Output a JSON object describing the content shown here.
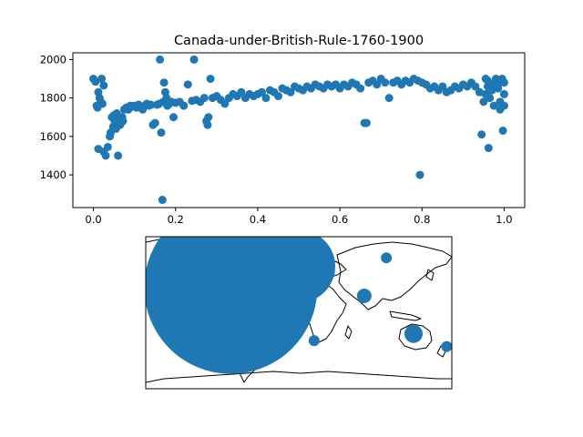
{
  "chart_data": [
    {
      "type": "scatter",
      "title": "Canada-under-British-Rule-1760-1900",
      "xlabel": "",
      "ylabel": "",
      "xlim": [
        -0.05,
        1.05
      ],
      "ylim": [
        1230,
        2035
      ],
      "xticks": [
        "0.0",
        "0.2",
        "0.4",
        "0.6",
        "0.8",
        "1.0"
      ],
      "yticks": [
        "1400",
        "1600",
        "1800",
        "2000"
      ],
      "marker_color": "#1f77b4",
      "points": [
        [
          0.0,
          1900
        ],
        [
          0.005,
          1885
        ],
        [
          0.008,
          1760
        ],
        [
          0.01,
          1750
        ],
        [
          0.012,
          1830
        ],
        [
          0.015,
          1800
        ],
        [
          0.018,
          1780
        ],
        [
          0.02,
          1900
        ],
        [
          0.022,
          1770
        ],
        [
          0.025,
          1865
        ],
        [
          0.012,
          1535
        ],
        [
          0.025,
          1520
        ],
        [
          0.03,
          1500
        ],
        [
          0.035,
          1545
        ],
        [
          0.04,
          1600
        ],
        [
          0.042,
          1620
        ],
        [
          0.045,
          1700
        ],
        [
          0.048,
          1650
        ],
        [
          0.05,
          1710
        ],
        [
          0.052,
          1680
        ],
        [
          0.055,
          1640
        ],
        [
          0.057,
          1720
        ],
        [
          0.06,
          1500
        ],
        [
          0.062,
          1700
        ],
        [
          0.065,
          1660
        ],
        [
          0.068,
          1690
        ],
        [
          0.07,
          1700
        ],
        [
          0.072,
          1680
        ],
        [
          0.075,
          1740
        ],
        [
          0.08,
          1750
        ],
        [
          0.085,
          1740
        ],
        [
          0.09,
          1760
        ],
        [
          0.095,
          1755
        ],
        [
          0.1,
          1760
        ],
        [
          0.105,
          1750
        ],
        [
          0.11,
          1765
        ],
        [
          0.115,
          1750
        ],
        [
          0.12,
          1740
        ],
        [
          0.125,
          1760
        ],
        [
          0.13,
          1770
        ],
        [
          0.135,
          1760
        ],
        [
          0.14,
          1765
        ],
        [
          0.145,
          1660
        ],
        [
          0.15,
          1670
        ],
        [
          0.155,
          1765
        ],
        [
          0.16,
          1770
        ],
        [
          0.162,
          2000
        ],
        [
          0.165,
          1620
        ],
        [
          0.168,
          1270
        ],
        [
          0.17,
          1780
        ],
        [
          0.172,
          1880
        ],
        [
          0.175,
          1830
        ],
        [
          0.178,
          1800
        ],
        [
          0.18,
          1760
        ],
        [
          0.185,
          1770
        ],
        [
          0.19,
          1780
        ],
        [
          0.195,
          1700
        ],
        [
          0.2,
          1775
        ],
        [
          0.21,
          1780
        ],
        [
          0.22,
          1760
        ],
        [
          0.23,
          1870
        ],
        [
          0.24,
          1785
        ],
        [
          0.245,
          2000
        ],
        [
          0.25,
          1790
        ],
        [
          0.26,
          1780
        ],
        [
          0.27,
          1800
        ],
        [
          0.275,
          1680
        ],
        [
          0.278,
          1660
        ],
        [
          0.28,
          1700
        ],
        [
          0.285,
          1900
        ],
        [
          0.29,
          1800
        ],
        [
          0.3,
          1810
        ],
        [
          0.31,
          1790
        ],
        [
          0.32,
          1770
        ],
        [
          0.33,
          1800
        ],
        [
          0.34,
          1820
        ],
        [
          0.35,
          1810
        ],
        [
          0.36,
          1830
        ],
        [
          0.37,
          1800
        ],
        [
          0.38,
          1820
        ],
        [
          0.39,
          1810
        ],
        [
          0.4,
          1820
        ],
        [
          0.41,
          1830
        ],
        [
          0.42,
          1800
        ],
        [
          0.43,
          1840
        ],
        [
          0.44,
          1830
        ],
        [
          0.45,
          1810
        ],
        [
          0.46,
          1850
        ],
        [
          0.47,
          1840
        ],
        [
          0.48,
          1830
        ],
        [
          0.49,
          1860
        ],
        [
          0.5,
          1850
        ],
        [
          0.51,
          1840
        ],
        [
          0.52,
          1860
        ],
        [
          0.53,
          1850
        ],
        [
          0.54,
          1870
        ],
        [
          0.55,
          1860
        ],
        [
          0.56,
          1850
        ],
        [
          0.57,
          1870
        ],
        [
          0.58,
          1860
        ],
        [
          0.59,
          1870
        ],
        [
          0.6,
          1850
        ],
        [
          0.61,
          1870
        ],
        [
          0.62,
          1860
        ],
        [
          0.63,
          1880
        ],
        [
          0.64,
          1870
        ],
        [
          0.65,
          1850
        ],
        [
          0.66,
          1670
        ],
        [
          0.665,
          1670
        ],
        [
          0.67,
          1880
        ],
        [
          0.68,
          1890
        ],
        [
          0.69,
          1870
        ],
        [
          0.7,
          1900
        ],
        [
          0.71,
          1880
        ],
        [
          0.72,
          1800
        ],
        [
          0.73,
          1880
        ],
        [
          0.74,
          1890
        ],
        [
          0.75,
          1870
        ],
        [
          0.76,
          1890
        ],
        [
          0.77,
          1880
        ],
        [
          0.78,
          1900
        ],
        [
          0.79,
          1890
        ],
        [
          0.795,
          1400
        ],
        [
          0.8,
          1880
        ],
        [
          0.81,
          1870
        ],
        [
          0.82,
          1850
        ],
        [
          0.83,
          1860
        ],
        [
          0.84,
          1840
        ],
        [
          0.85,
          1860
        ],
        [
          0.86,
          1830
        ],
        [
          0.87,
          1840
        ],
        [
          0.88,
          1860
        ],
        [
          0.89,
          1850
        ],
        [
          0.9,
          1870
        ],
        [
          0.91,
          1860
        ],
        [
          0.92,
          1880
        ],
        [
          0.93,
          1860
        ],
        [
          0.94,
          1830
        ],
        [
          0.945,
          1610
        ],
        [
          0.95,
          1780
        ],
        [
          0.955,
          1820
        ],
        [
          0.96,
          1890
        ],
        [
          0.962,
          1540
        ],
        [
          0.965,
          1800
        ],
        [
          0.97,
          1870
        ],
        [
          0.975,
          1760
        ],
        [
          0.98,
          1900
        ],
        [
          0.985,
          1850
        ],
        [
          0.99,
          1740
        ],
        [
          0.995,
          1900
        ],
        [
          0.997,
          1630
        ],
        [
          1.0,
          1820
        ],
        [
          0.98,
          1880
        ],
        [
          0.99,
          1880
        ],
        [
          1.0,
          1880
        ],
        [
          0.97,
          1840
        ],
        [
          0.96,
          1860
        ],
        [
          0.955,
          1900
        ],
        [
          0.99,
          1780
        ],
        [
          1.0,
          1760
        ]
      ]
    },
    {
      "type": "scatter",
      "title": "",
      "projection": "plate-carree world map",
      "lon_range": [
        -180,
        180
      ],
      "lat_range": [
        -90,
        90
      ],
      "marker_color": "#1f77b4",
      "points": [
        {
          "lon": -80,
          "lat": 30,
          "size": 95
        },
        {
          "lon": 0,
          "lat": 55,
          "size": 40
        },
        {
          "lon": 35,
          "lat": 48,
          "size": 7
        },
        {
          "lon": 18,
          "lat": -33,
          "size": 6
        },
        {
          "lon": 77,
          "lat": 20,
          "size": 8
        },
        {
          "lon": 103,
          "lat": 65,
          "size": 6
        },
        {
          "lon": 135,
          "lat": -25,
          "size": 10
        },
        {
          "lon": 174,
          "lat": -40,
          "size": 6
        }
      ]
    }
  ]
}
